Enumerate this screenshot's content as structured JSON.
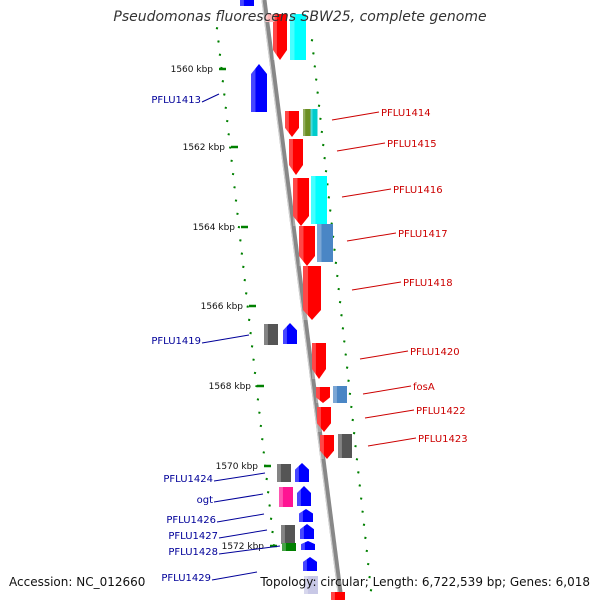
{
  "title": "Pseudomonas fluorescens SBW25, complete genome",
  "accession": "Accession: NC_012660",
  "topology": "Topology: circular; Length: 6,722,539 bp; Genes: 6,018",
  "colors": {
    "forward_label": "#cc0000",
    "reverse_label": "#000099",
    "scale": "#008000",
    "backbone": "#888888"
  },
  "scale_labels": [
    "1560 kbp",
    "1562 kbp",
    "1564 kbp",
    "1566 kbp",
    "1568 kbp",
    "1570 kbp",
    "1572 kbp"
  ],
  "genes_forward": [
    "PFLU1414",
    "PFLU1415",
    "PFLU1416",
    "PFLU1417",
    "PFLU1418",
    "PFLU1420",
    "fosA",
    "PFLU1422",
    "PFLU1423"
  ],
  "genes_reverse": [
    "PFLU1413",
    "PFLU1419",
    "PFLU1424",
    "ogt",
    "PFLU1426",
    "PFLU1427",
    "PFLU1428",
    "PFLU1429"
  ]
}
